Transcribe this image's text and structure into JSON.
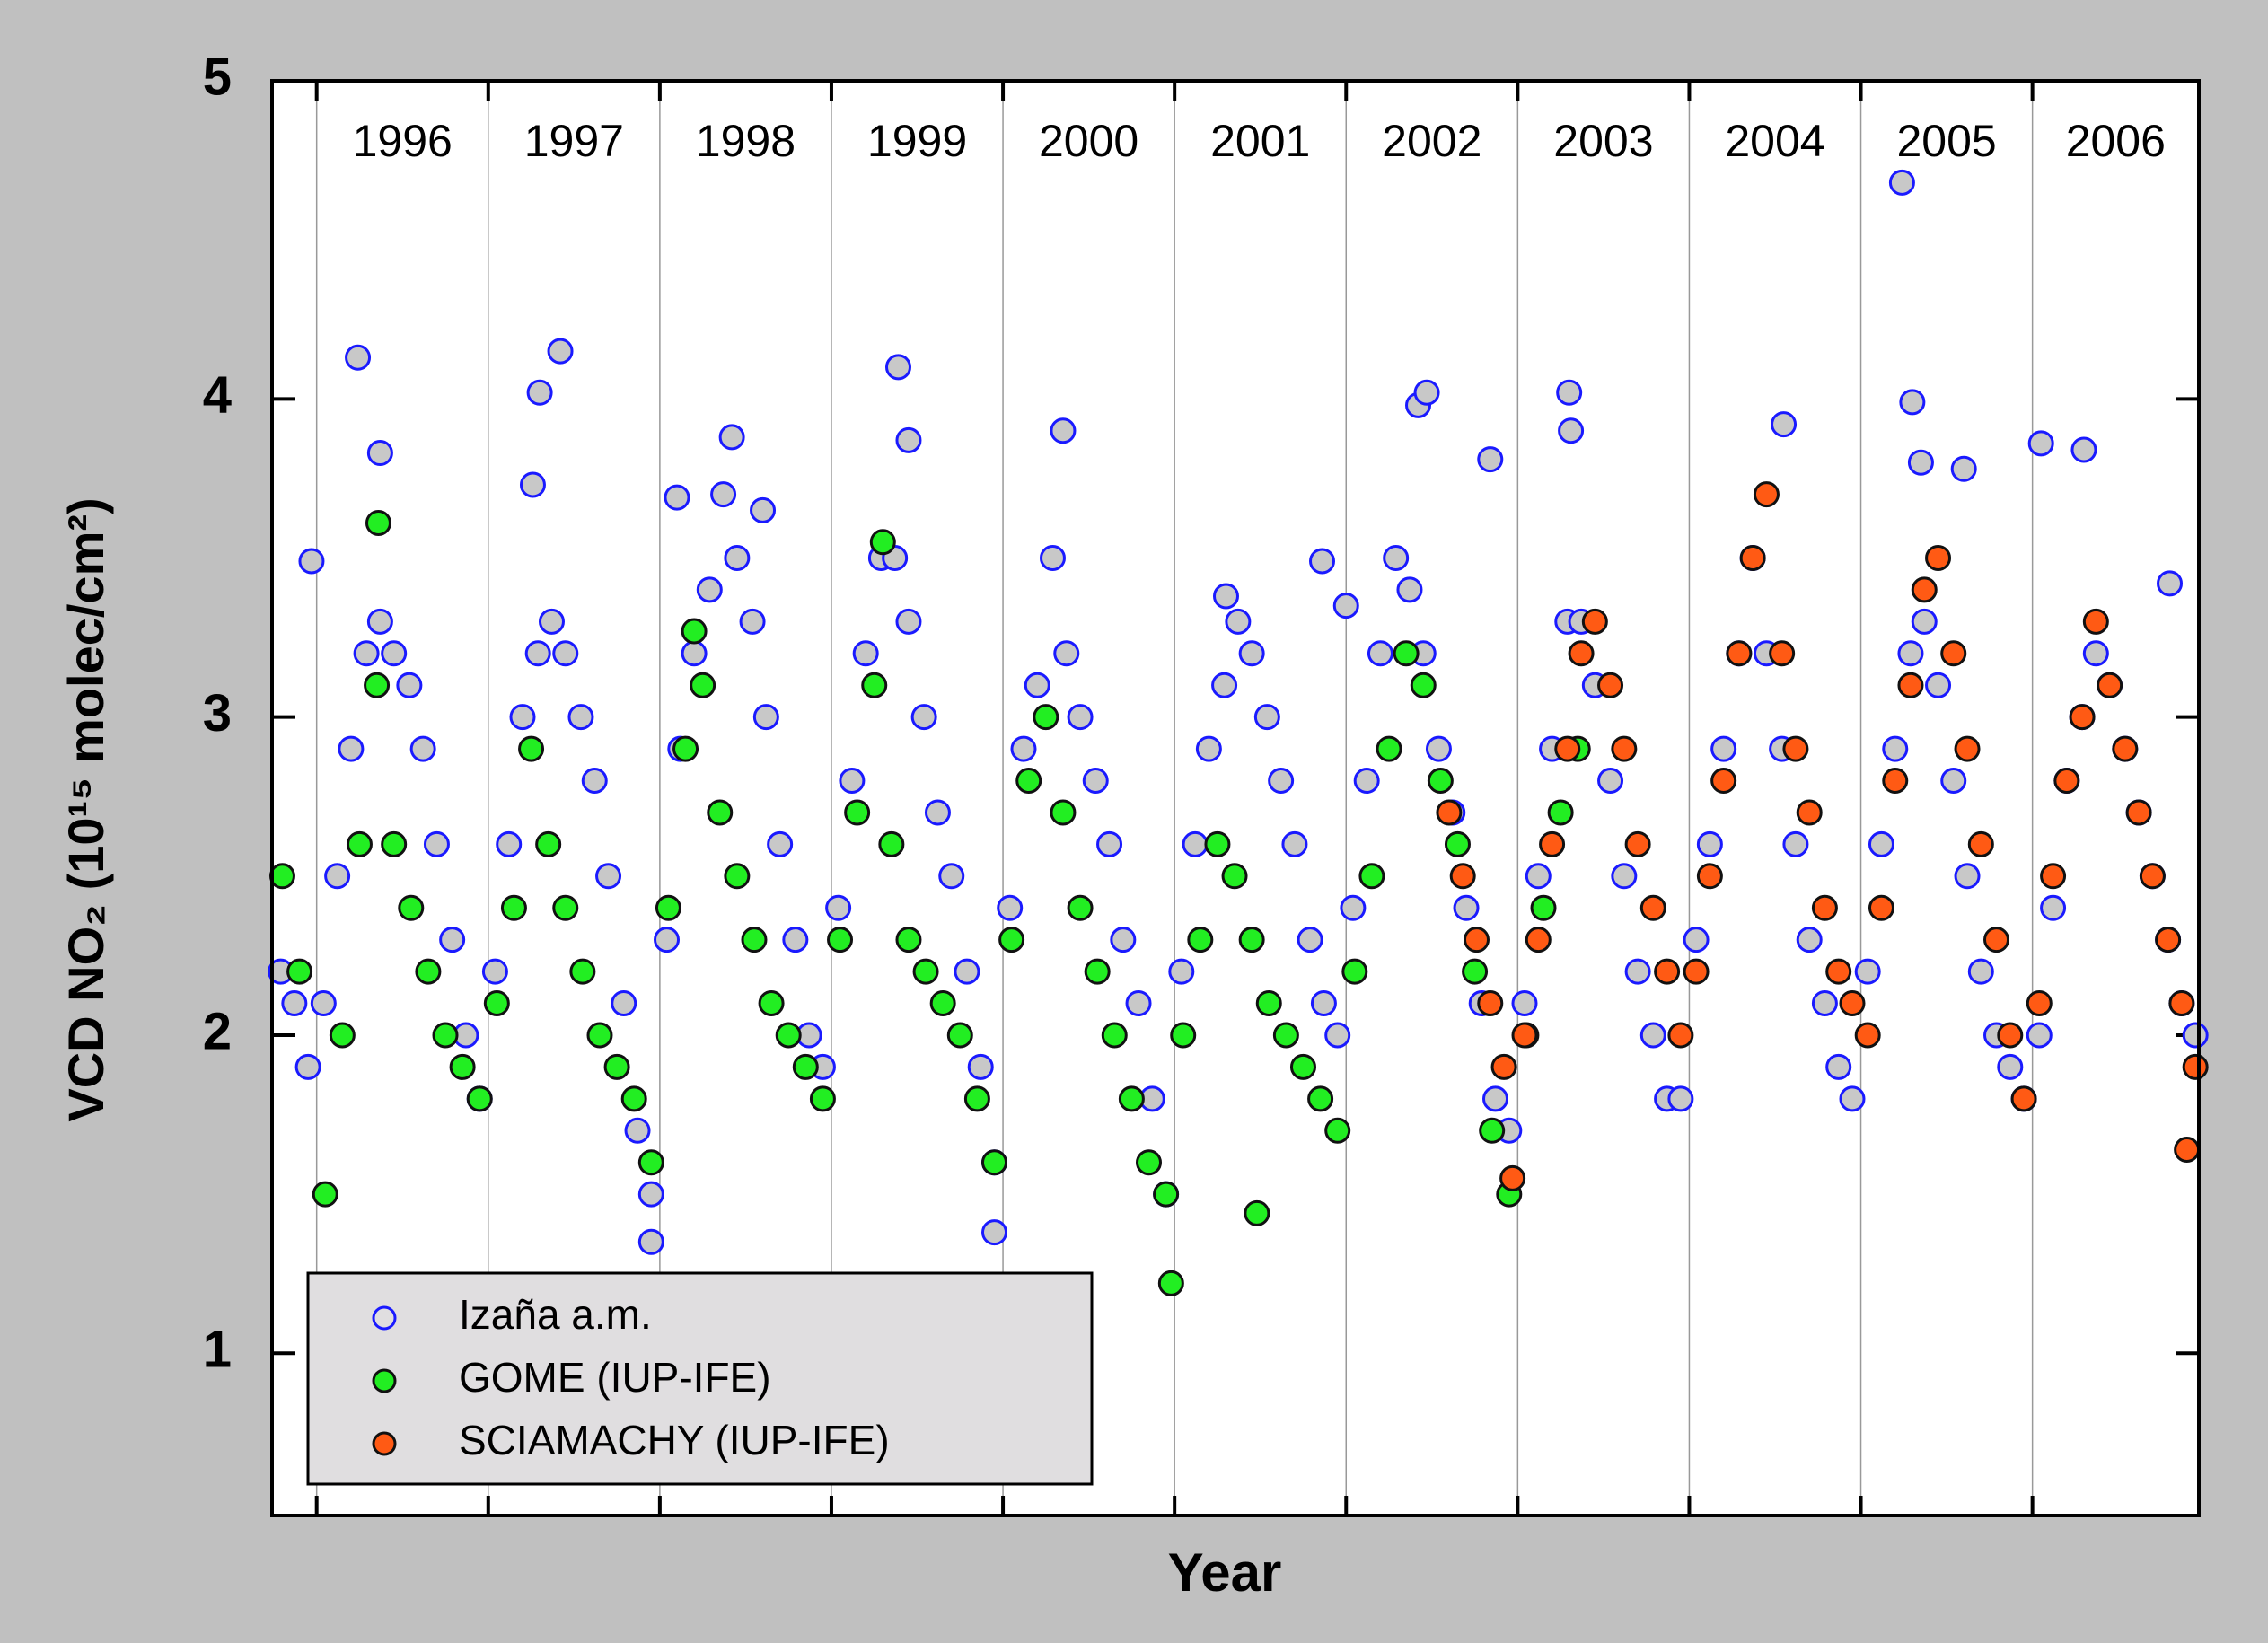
{
  "chart_data": {
    "type": "scatter",
    "x_label": "Year",
    "y_label": "VCD NO₂ (10¹⁵ molec/cm²)",
    "xlim": [
      1995.74,
      2006.97
    ],
    "ylim": [
      0.49,
      5
    ],
    "xticks": [
      {
        "value": 1996,
        "label": "1996"
      },
      {
        "value": 1997,
        "label": "1997"
      },
      {
        "value": 1998,
        "label": "1998"
      },
      {
        "value": 1999,
        "label": "1999"
      },
      {
        "value": 2000,
        "label": "2000"
      },
      {
        "value": 2001,
        "label": "2001"
      },
      {
        "value": 2002,
        "label": "2002"
      },
      {
        "value": 2003,
        "label": "2003"
      },
      {
        "value": 2004,
        "label": "2004"
      },
      {
        "value": 2005,
        "label": "2005"
      },
      {
        "value": 2006,
        "label": "2006"
      }
    ],
    "yticks": [
      1,
      2,
      3,
      4,
      5
    ],
    "xgrid": true,
    "legend": "lower left",
    "series": [
      {
        "name": "Izaña a.m.",
        "color": "#1a1aff",
        "fill": "#c8c8c8",
        "x": [
          1995.79,
          1995.87,
          1995.95,
          1996.04,
          1996.12,
          1996.2,
          1996.29,
          1996.37,
          1996.45,
          1996.54,
          1996.62,
          1996.7,
          1996.79,
          1996.87,
          1996.95,
          1997.04,
          1997.12,
          1997.2,
          1997.29,
          1997.37,
          1997.45,
          1997.54,
          1997.62,
          1997.7,
          1997.79,
          1997.87,
          1997.95,
          1998.04,
          1998.12,
          1998.2,
          1998.29,
          1998.37,
          1998.45,
          1998.54,
          1998.62,
          1998.7,
          1998.79,
          1998.87,
          1998.95,
          1999.04,
          1999.12,
          1999.2,
          1999.29,
          1999.37,
          1999.45,
          1999.54,
          1999.62,
          1999.7,
          1999.79,
          1999.87,
          1999.95,
          2000.04,
          2000.12,
          2000.2,
          2000.29,
          2000.37,
          2000.45,
          2000.54,
          2000.62,
          2000.7,
          2000.79,
          2000.87,
          2000.95,
          2001.04,
          2001.12,
          2001.2,
          2001.29,
          2001.37,
          2001.45,
          2001.54,
          2001.62,
          2001.7,
          2001.79,
          2001.87,
          2001.95,
          2002.04,
          2002.12,
          2002.2,
          2002.29,
          2002.37,
          2002.45,
          2002.54,
          2002.62,
          2002.7,
          2002.79,
          2002.87,
          2002.95,
          2003.04,
          2003.12,
          2003.2,
          2003.29,
          2003.37,
          2003.45,
          2003.54,
          2003.62,
          2003.7,
          2003.79,
          2003.87,
          2003.95,
          2004.04,
          2004.12,
          2004.2,
          2004.29,
          2004.37,
          2004.45,
          2004.54,
          2004.62,
          2004.7,
          2004.79,
          2004.87,
          2004.95,
          2005.04,
          2005.12,
          2005.2,
          2005.29,
          2005.37,
          2005.45,
          2005.54,
          2005.62,
          2005.7,
          2005.79,
          2005.87,
          2005.95,
          2006.04,
          2006.12,
          2006.2,
          2006.29,
          2006.37,
          2006.45,
          2006.54,
          2006.62,
          2006.7,
          2006.79,
          2006.87,
          2006.95,
          1995.97,
          1996.24,
          1996.37,
          1997.3,
          1997.42,
          1997.26,
          1997.95,
          1998.42,
          1998.1,
          1998.6,
          1999.39,
          1999.45,
          1999.95,
          2000.35,
          2001.3,
          2001.86,
          2002.0,
          2002.42,
          2002.47,
          2002.84,
          2003.3,
          2003.31,
          2004.55,
          2005.24,
          2005.3,
          2005.35,
          2005.6,
          2006.05,
          2006.3,
          2006.8
        ],
        "values": [
          2.2,
          2.1,
          1.9,
          2.1,
          2.5,
          2.9,
          3.2,
          3.3,
          3.2,
          3.1,
          2.9,
          2.6,
          2.3,
          2.0,
          1.8,
          2.2,
          2.6,
          3.0,
          3.2,
          3.3,
          3.2,
          3.0,
          2.8,
          2.5,
          2.1,
          1.7,
          1.5,
          2.3,
          2.9,
          3.2,
          3.4,
          3.7,
          3.5,
          3.3,
          3.0,
          2.6,
          2.3,
          2.0,
          1.9,
          2.4,
          2.8,
          3.2,
          3.5,
          3.5,
          3.3,
          3.0,
          2.7,
          2.5,
          2.2,
          1.9,
          1.6,
          2.4,
          2.9,
          3.1,
          3.5,
          3.2,
          3.0,
          2.8,
          2.6,
          2.3,
          2.1,
          1.8,
          1.5,
          2.2,
          2.6,
          2.9,
          3.1,
          3.3,
          3.2,
          3.0,
          2.8,
          2.6,
          2.3,
          2.1,
          2.0,
          2.4,
          2.8,
          3.2,
          3.5,
          3.4,
          3.2,
          2.9,
          2.7,
          2.4,
          2.1,
          1.8,
          1.7,
          2.1,
          2.5,
          2.9,
          3.3,
          3.3,
          3.1,
          2.8,
          2.5,
          2.2,
          2.0,
          1.8,
          1.8,
          2.3,
          2.6,
          2.9,
          3.2,
          3.5,
          3.2,
          2.9,
          2.6,
          2.3,
          2.1,
          1.9,
          1.8,
          2.2,
          2.6,
          2.9,
          3.2,
          3.3,
          3.1,
          2.8,
          2.5,
          2.2,
          2.0,
          1.9,
          1.8,
          2.0,
          2.4,
          2.8,
          3.0,
          3.2,
          3.1,
          2.9,
          2.7,
          2.5,
          2.3,
          2.1,
          2.0,
          3.49,
          4.13,
          3.83,
          4.02,
          4.15,
          3.73,
          1.35,
          3.88,
          3.69,
          3.65,
          4.1,
          3.87,
          1.38,
          3.9,
          3.38,
          3.49,
          3.35,
          3.98,
          4.02,
          3.81,
          4.02,
          3.9,
          3.92,
          4.68,
          3.99,
          3.8,
          3.78,
          3.86,
          3.84,
          3.42
        ]
      },
      {
        "name": "GOME (IUP-IFE)",
        "color": "#111111",
        "fill": "#22ee22",
        "x": [
          1995.8,
          1995.9,
          1996.05,
          1996.15,
          1996.25,
          1996.35,
          1996.45,
          1996.55,
          1996.65,
          1996.75,
          1996.85,
          1996.95,
          1997.05,
          1997.15,
          1997.25,
          1997.35,
          1997.45,
          1997.55,
          1997.65,
          1997.75,
          1997.85,
          1997.95,
          1998.05,
          1998.15,
          1998.25,
          1998.35,
          1998.45,
          1998.55,
          1998.65,
          1998.75,
          1998.85,
          1998.95,
          1999.05,
          1999.15,
          1999.25,
          1999.35,
          1999.45,
          1999.55,
          1999.65,
          1999.75,
          1999.85,
          1999.95,
          2000.05,
          2000.15,
          2000.25,
          2000.35,
          2000.45,
          2000.55,
          2000.65,
          2000.75,
          2000.85,
          2000.95,
          2001.05,
          2001.15,
          2001.25,
          2001.35,
          2001.45,
          2001.55,
          2001.65,
          2001.75,
          2001.85,
          2001.95,
          2002.05,
          2002.15,
          2002.25,
          2002.35,
          2002.45,
          2002.55,
          2002.65,
          2002.75,
          2002.85,
          2002.95,
          2003.05,
          2003.15,
          2003.25,
          2003.35,
          1996.36,
          1998.2,
          1999.3,
          2000.98,
          2001.48
        ],
        "values": [
          2.5,
          2.2,
          1.5,
          2.0,
          2.6,
          3.1,
          2.6,
          2.4,
          2.2,
          2.0,
          1.9,
          1.8,
          2.1,
          2.4,
          2.9,
          2.6,
          2.4,
          2.2,
          2.0,
          1.9,
          1.8,
          1.6,
          2.4,
          2.9,
          3.1,
          2.7,
          2.5,
          2.3,
          2.1,
          2.0,
          1.9,
          1.8,
          2.3,
          2.7,
          3.1,
          2.6,
          2.3,
          2.2,
          2.1,
          2.0,
          1.8,
          1.6,
          2.3,
          2.8,
          3.0,
          2.7,
          2.4,
          2.2,
          2.0,
          1.8,
          1.6,
          1.5,
          2.0,
          2.3,
          2.6,
          2.5,
          2.3,
          2.1,
          2.0,
          1.9,
          1.8,
          1.7,
          2.2,
          2.5,
          2.9,
          3.2,
          3.1,
          2.8,
          2.6,
          2.2,
          1.7,
          1.5,
          2.0,
          2.4,
          2.7,
          2.9,
          3.61,
          3.27,
          3.55,
          1.22,
          1.44
        ]
      },
      {
        "name": "SCIAMACHY (IUP-IFE)",
        "color": "#111111",
        "fill": "#ff5a14",
        "x": [
          2002.6,
          2002.68,
          2002.76,
          2002.84,
          2002.92,
          2002.97,
          2003.04,
          2003.12,
          2003.2,
          2003.29,
          2003.37,
          2003.45,
          2003.54,
          2003.62,
          2003.7,
          2003.79,
          2003.87,
          2003.95,
          2004.04,
          2004.12,
          2004.2,
          2004.29,
          2004.37,
          2004.45,
          2004.54,
          2004.62,
          2004.7,
          2004.79,
          2004.87,
          2004.95,
          2005.04,
          2005.12,
          2005.2,
          2005.29,
          2005.37,
          2005.45,
          2005.54,
          2005.62,
          2005.7,
          2005.79,
          2005.87,
          2005.95,
          2006.04,
          2006.12,
          2006.2,
          2006.29,
          2006.37,
          2006.45,
          2006.54,
          2006.62,
          2006.7,
          2006.79,
          2006.87,
          2006.95,
          2006.9
        ],
        "values": [
          2.7,
          2.5,
          2.3,
          2.1,
          1.9,
          1.55,
          2.0,
          2.3,
          2.6,
          2.9,
          3.2,
          3.3,
          3.1,
          2.9,
          2.6,
          2.4,
          2.2,
          2.0,
          2.2,
          2.5,
          2.8,
          3.2,
          3.5,
          3.7,
          3.2,
          2.9,
          2.7,
          2.4,
          2.2,
          2.1,
          2.0,
          2.4,
          2.8,
          3.1,
          3.4,
          3.5,
          3.2,
          2.9,
          2.6,
          2.3,
          2.0,
          1.8,
          2.1,
          2.5,
          2.8,
          3.0,
          3.3,
          3.1,
          2.9,
          2.7,
          2.5,
          2.3,
          2.1,
          1.9,
          1.64
        ]
      }
    ]
  }
}
